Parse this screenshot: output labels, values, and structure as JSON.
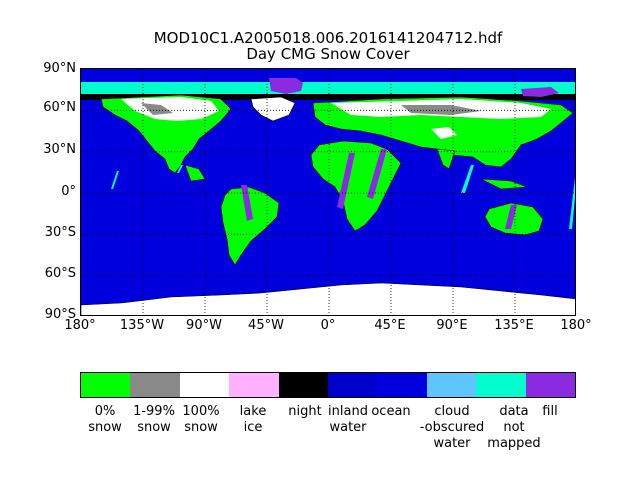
{
  "figure": {
    "title_line_1": "MOD10C1.A2005018.006.2016141204712.hdf",
    "title_line_2": "Day CMG Snow Cover"
  },
  "map": {
    "projection": "equirectangular",
    "lon_range": [
      -180,
      180
    ],
    "lat_range": [
      -90,
      90
    ],
    "lat_ticks": [
      {
        "value": 90,
        "label": "90°N"
      },
      {
        "value": 60,
        "label": "60°N"
      },
      {
        "value": 30,
        "label": "30°N"
      },
      {
        "value": 0,
        "label": "0°"
      },
      {
        "value": -30,
        "label": "30°S"
      },
      {
        "value": -60,
        "label": "60°S"
      },
      {
        "value": -90,
        "label": "90°S"
      }
    ],
    "lon_ticks": [
      {
        "value": -180,
        "label": "180°"
      },
      {
        "value": -135,
        "label": "135°W"
      },
      {
        "value": -90,
        "label": "90°W"
      },
      {
        "value": -45,
        "label": "45°W"
      },
      {
        "value": 0,
        "label": "0°"
      },
      {
        "value": 45,
        "label": "45°E"
      },
      {
        "value": 90,
        "label": "90°E"
      },
      {
        "value": 135,
        "label": "135°E"
      },
      {
        "value": 180,
        "label": "180°"
      }
    ],
    "gridlines": "dotted"
  },
  "colorbar": {
    "classes": [
      {
        "label": "0%\nsnow",
        "color": "#00ff00"
      },
      {
        "label": "1-99%\nsnow",
        "color": "#898989"
      },
      {
        "label": "100%\nsnow",
        "color": "#ffffff"
      },
      {
        "label": "lake\nice",
        "color": "#ffb0ff"
      },
      {
        "label": "night",
        "color": "#000000"
      },
      {
        "label": "inland\nwater",
        "color": "#0000cd"
      },
      {
        "label": "ocean",
        "color": "#0000de"
      },
      {
        "label": "cloud\n-obscured\nwater",
        "color": "#60c4ff"
      },
      {
        "label": "data\nnot\nmapped",
        "color": "#00ffcc"
      },
      {
        "label": "fill",
        "color": "#8a2be2"
      }
    ]
  }
}
